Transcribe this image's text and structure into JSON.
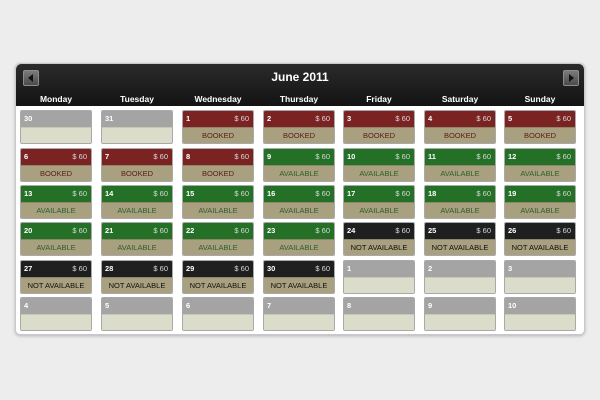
{
  "calendar": {
    "title": "June 2011",
    "days": [
      "Monday",
      "Tuesday",
      "Wednesday",
      "Thursday",
      "Friday",
      "Saturday",
      "Sunday"
    ],
    "price": "$ 60",
    "status_labels": {
      "booked": "BOOKED",
      "available": "AVAILABLE",
      "na": "NOT AVAILABLE"
    },
    "colors": {
      "booked": "#7b2323",
      "available": "#247027",
      "not_available": "#1f1f1f",
      "inactive": "#a4a4a4",
      "status_bar": "#a8a07e"
    },
    "weeks": [
      [
        {
          "d": "30",
          "s": "inactive"
        },
        {
          "d": "31",
          "s": "inactive"
        },
        {
          "d": "1",
          "s": "booked"
        },
        {
          "d": "2",
          "s": "booked"
        },
        {
          "d": "3",
          "s": "booked"
        },
        {
          "d": "4",
          "s": "booked"
        },
        {
          "d": "5",
          "s": "booked"
        }
      ],
      [
        {
          "d": "6",
          "s": "booked"
        },
        {
          "d": "7",
          "s": "booked"
        },
        {
          "d": "8",
          "s": "booked"
        },
        {
          "d": "9",
          "s": "available"
        },
        {
          "d": "10",
          "s": "available"
        },
        {
          "d": "11",
          "s": "available"
        },
        {
          "d": "12",
          "s": "available"
        }
      ],
      [
        {
          "d": "13",
          "s": "available"
        },
        {
          "d": "14",
          "s": "available"
        },
        {
          "d": "15",
          "s": "available"
        },
        {
          "d": "16",
          "s": "available"
        },
        {
          "d": "17",
          "s": "available"
        },
        {
          "d": "18",
          "s": "available"
        },
        {
          "d": "19",
          "s": "available"
        }
      ],
      [
        {
          "d": "20",
          "s": "available"
        },
        {
          "d": "21",
          "s": "available"
        },
        {
          "d": "22",
          "s": "available"
        },
        {
          "d": "23",
          "s": "available"
        },
        {
          "d": "24",
          "s": "na"
        },
        {
          "d": "25",
          "s": "na"
        },
        {
          "d": "26",
          "s": "na"
        }
      ],
      [
        {
          "d": "27",
          "s": "na"
        },
        {
          "d": "28",
          "s": "na"
        },
        {
          "d": "29",
          "s": "na"
        },
        {
          "d": "30",
          "s": "na"
        },
        {
          "d": "1",
          "s": "inactive"
        },
        {
          "d": "2",
          "s": "inactive"
        },
        {
          "d": "3",
          "s": "inactive"
        }
      ],
      [
        {
          "d": "4",
          "s": "inactive"
        },
        {
          "d": "5",
          "s": "inactive"
        },
        {
          "d": "6",
          "s": "inactive"
        },
        {
          "d": "7",
          "s": "inactive"
        },
        {
          "d": "8",
          "s": "inactive"
        },
        {
          "d": "9",
          "s": "inactive"
        },
        {
          "d": "10",
          "s": "inactive"
        }
      ]
    ]
  }
}
